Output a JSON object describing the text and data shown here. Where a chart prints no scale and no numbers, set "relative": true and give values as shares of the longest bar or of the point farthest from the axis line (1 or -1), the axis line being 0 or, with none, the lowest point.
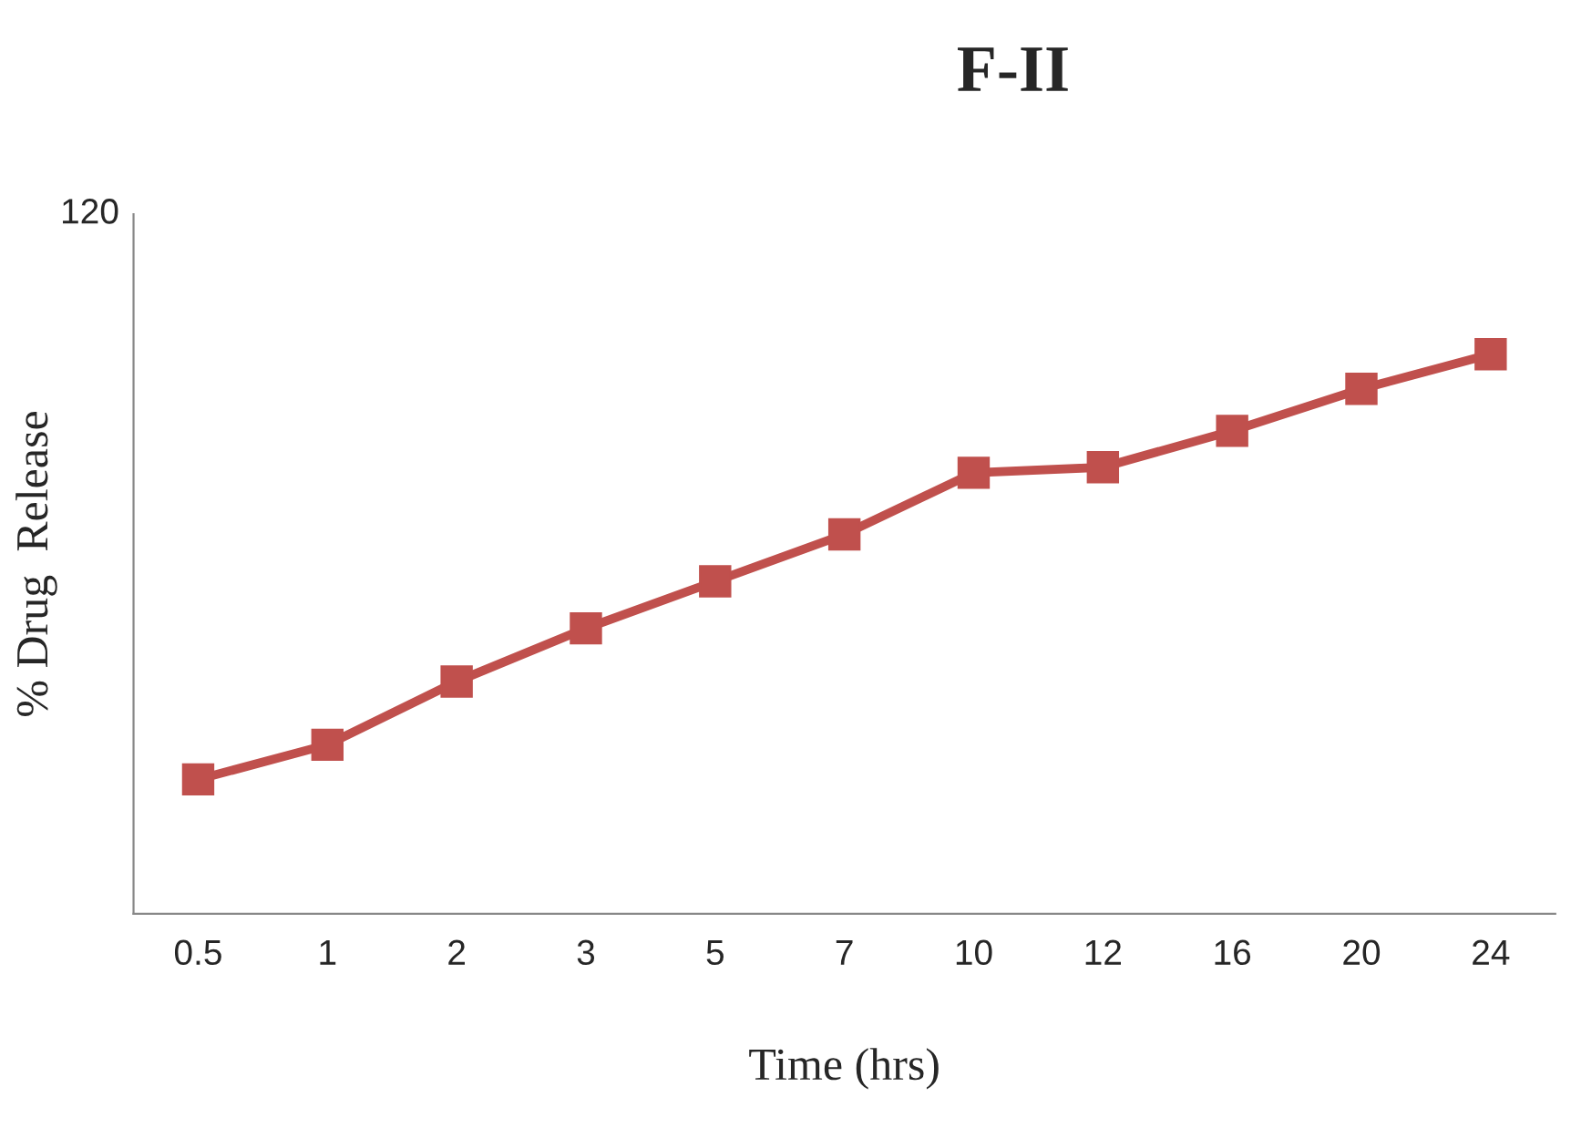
{
  "chart_data": {
    "type": "line",
    "title": "F-II",
    "xlabel": "Time (hrs)",
    "ylabel": "% Drug  Release",
    "categories": [
      "0.5",
      "1",
      "2",
      "3",
      "5",
      "7",
      "10",
      "12",
      "16",
      "20",
      "24"
    ],
    "relative": true,
    "series": [
      {
        "color": "#c0504d",
        "values": [
          0.24,
          0.302,
          0.415,
          0.51,
          0.594,
          0.678,
          0.788,
          0.798,
          0.863,
          0.938,
          1
        ]
      }
    ],
    "annotations": [
      "120"
    ],
    "marker": "square",
    "line_style": "solid",
    "grid": false,
    "legend": false
  }
}
